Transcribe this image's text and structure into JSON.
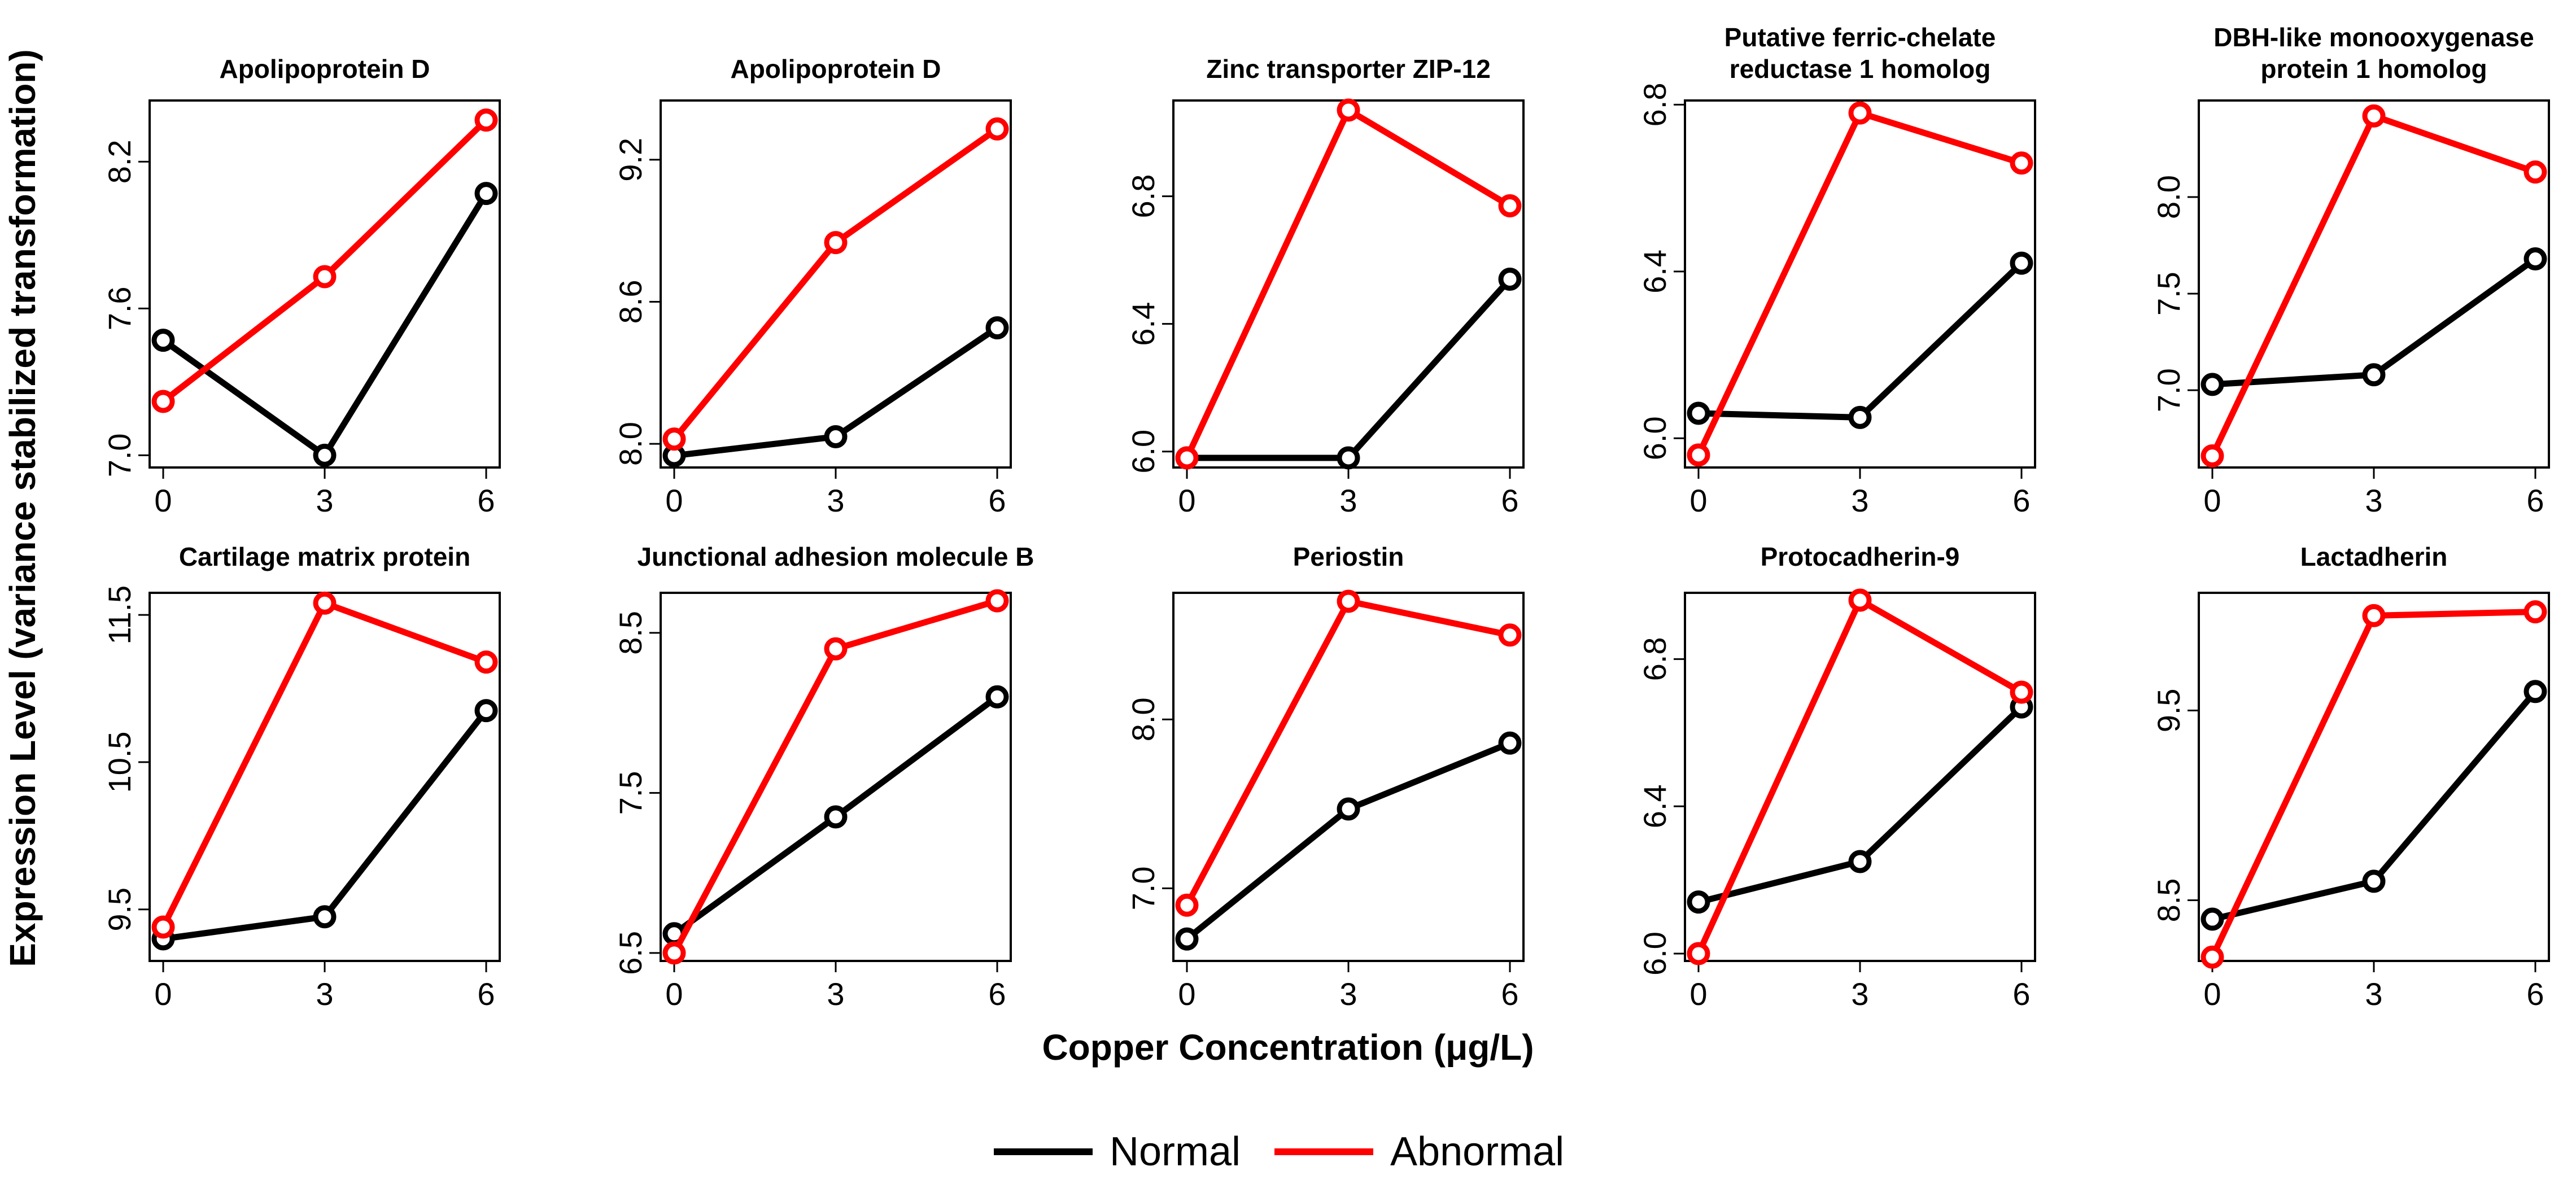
{
  "chart_data": {
    "type": "line",
    "y_axis_title": "Expression Level (variance stabilized transformation)",
    "x_axis_title": "Copper Concentration (μg/L)",
    "x": [
      0,
      3,
      6
    ],
    "x_tick_labels": [
      "0",
      "3",
      "6"
    ],
    "legend": [
      {
        "name": "Normal",
        "color": "#000000"
      },
      {
        "name": "Abnormal",
        "color": "#ff0000"
      }
    ],
    "panels": [
      {
        "title": [
          "Apolipoprotein D"
        ],
        "ylim": [
          6.95,
          8.45
        ],
        "yticks": [
          7.0,
          7.6,
          8.2
        ],
        "ytick_labels": [
          "7.0",
          "7.6",
          "8.2"
        ],
        "series": [
          {
            "name": "Normal",
            "values": [
              7.47,
              7.0,
              8.07
            ]
          },
          {
            "name": "Abnormal",
            "values": [
              7.22,
              7.73,
              8.37
            ]
          }
        ]
      },
      {
        "title": [
          "Apolipoprotein D"
        ],
        "ylim": [
          7.9,
          9.45
        ],
        "yticks": [
          8.0,
          8.6,
          9.2
        ],
        "ytick_labels": [
          "8.0",
          "8.6",
          "9.2"
        ],
        "series": [
          {
            "name": "Normal",
            "values": [
              7.95,
              8.03,
              8.49
            ]
          },
          {
            "name": "Abnormal",
            "values": [
              8.02,
              8.85,
              9.33
            ]
          }
        ]
      },
      {
        "title": [
          "Zinc transporter ZIP-12"
        ],
        "ylim": [
          5.95,
          7.1
        ],
        "yticks": [
          6.0,
          6.4,
          6.8
        ],
        "ytick_labels": [
          "6.0",
          "6.4",
          "6.8"
        ],
        "series": [
          {
            "name": "Normal",
            "values": [
              5.98,
              5.98,
              6.54
            ]
          },
          {
            "name": "Abnormal",
            "values": [
              5.98,
              7.07,
              6.77
            ]
          }
        ]
      },
      {
        "title": [
          "Putative ferric-chelate",
          "reductase 1 homolog"
        ],
        "ylim": [
          5.93,
          6.81
        ],
        "yticks": [
          6.0,
          6.4,
          6.8
        ],
        "ytick_labels": [
          "6.0",
          "6.4",
          "6.8"
        ],
        "series": [
          {
            "name": "Normal",
            "values": [
              6.06,
              6.05,
              6.42
            ]
          },
          {
            "name": "Abnormal",
            "values": [
              5.96,
              6.78,
              6.66
            ]
          }
        ]
      },
      {
        "title": [
          "DBH-like monooxygenase",
          "protein 1 homolog"
        ],
        "ylim": [
          6.6,
          8.5
        ],
        "yticks": [
          7.0,
          7.5,
          8.0
        ],
        "ytick_labels": [
          "7.0",
          "7.5",
          "8.0"
        ],
        "series": [
          {
            "name": "Normal",
            "values": [
              7.03,
              7.08,
              7.68
            ]
          },
          {
            "name": "Abnormal",
            "values": [
              6.66,
              8.42,
              8.13
            ]
          }
        ]
      },
      {
        "title": [
          "Cartilage matrix protein"
        ],
        "ylim": [
          9.15,
          11.65
        ],
        "yticks": [
          9.5,
          10.5,
          11.5
        ],
        "ytick_labels": [
          "9.5",
          "10.5",
          "11.5"
        ],
        "series": [
          {
            "name": "Normal",
            "values": [
              9.3,
              9.45,
              10.85
            ]
          },
          {
            "name": "Abnormal",
            "values": [
              9.38,
              11.58,
              11.18
            ]
          }
        ]
      },
      {
        "title": [
          "Junctional adhesion molecule B"
        ],
        "ylim": [
          6.45,
          8.75
        ],
        "yticks": [
          6.5,
          7.5,
          8.5
        ],
        "ytick_labels": [
          "6.5",
          "7.5",
          "8.5"
        ],
        "series": [
          {
            "name": "Normal",
            "values": [
              6.62,
              7.35,
              8.1
            ]
          },
          {
            "name": "Abnormal",
            "values": [
              6.5,
              8.4,
              8.7
            ]
          }
        ]
      },
      {
        "title": [
          "Periostin"
        ],
        "ylim": [
          6.57,
          8.75
        ],
        "yticks": [
          7.0,
          8.0
        ],
        "ytick_labels": [
          "7.0",
          "8.0"
        ],
        "series": [
          {
            "name": "Normal",
            "values": [
              6.7,
              7.47,
              7.86
            ]
          },
          {
            "name": "Abnormal",
            "values": [
              6.9,
              8.7,
              8.5
            ]
          }
        ]
      },
      {
        "title": [
          "Protocadherin-9"
        ],
        "ylim": [
          5.98,
          6.98
        ],
        "yticks": [
          6.0,
          6.4,
          6.8
        ],
        "ytick_labels": [
          "6.0",
          "6.4",
          "6.8"
        ],
        "series": [
          {
            "name": "Normal",
            "values": [
              6.14,
              6.25,
              6.67
            ]
          },
          {
            "name": "Abnormal",
            "values": [
              6.0,
              6.96,
              6.71
            ]
          }
        ]
      },
      {
        "title": [
          "Lactadherin"
        ],
        "ylim": [
          8.18,
          10.12
        ],
        "yticks": [
          8.5,
          9.5
        ],
        "ytick_labels": [
          "8.5",
          "9.5"
        ],
        "series": [
          {
            "name": "Normal",
            "values": [
              8.4,
              8.6,
              9.6
            ]
          },
          {
            "name": "Abnormal",
            "values": [
              8.2,
              10.0,
              10.02
            ]
          }
        ]
      }
    ]
  }
}
